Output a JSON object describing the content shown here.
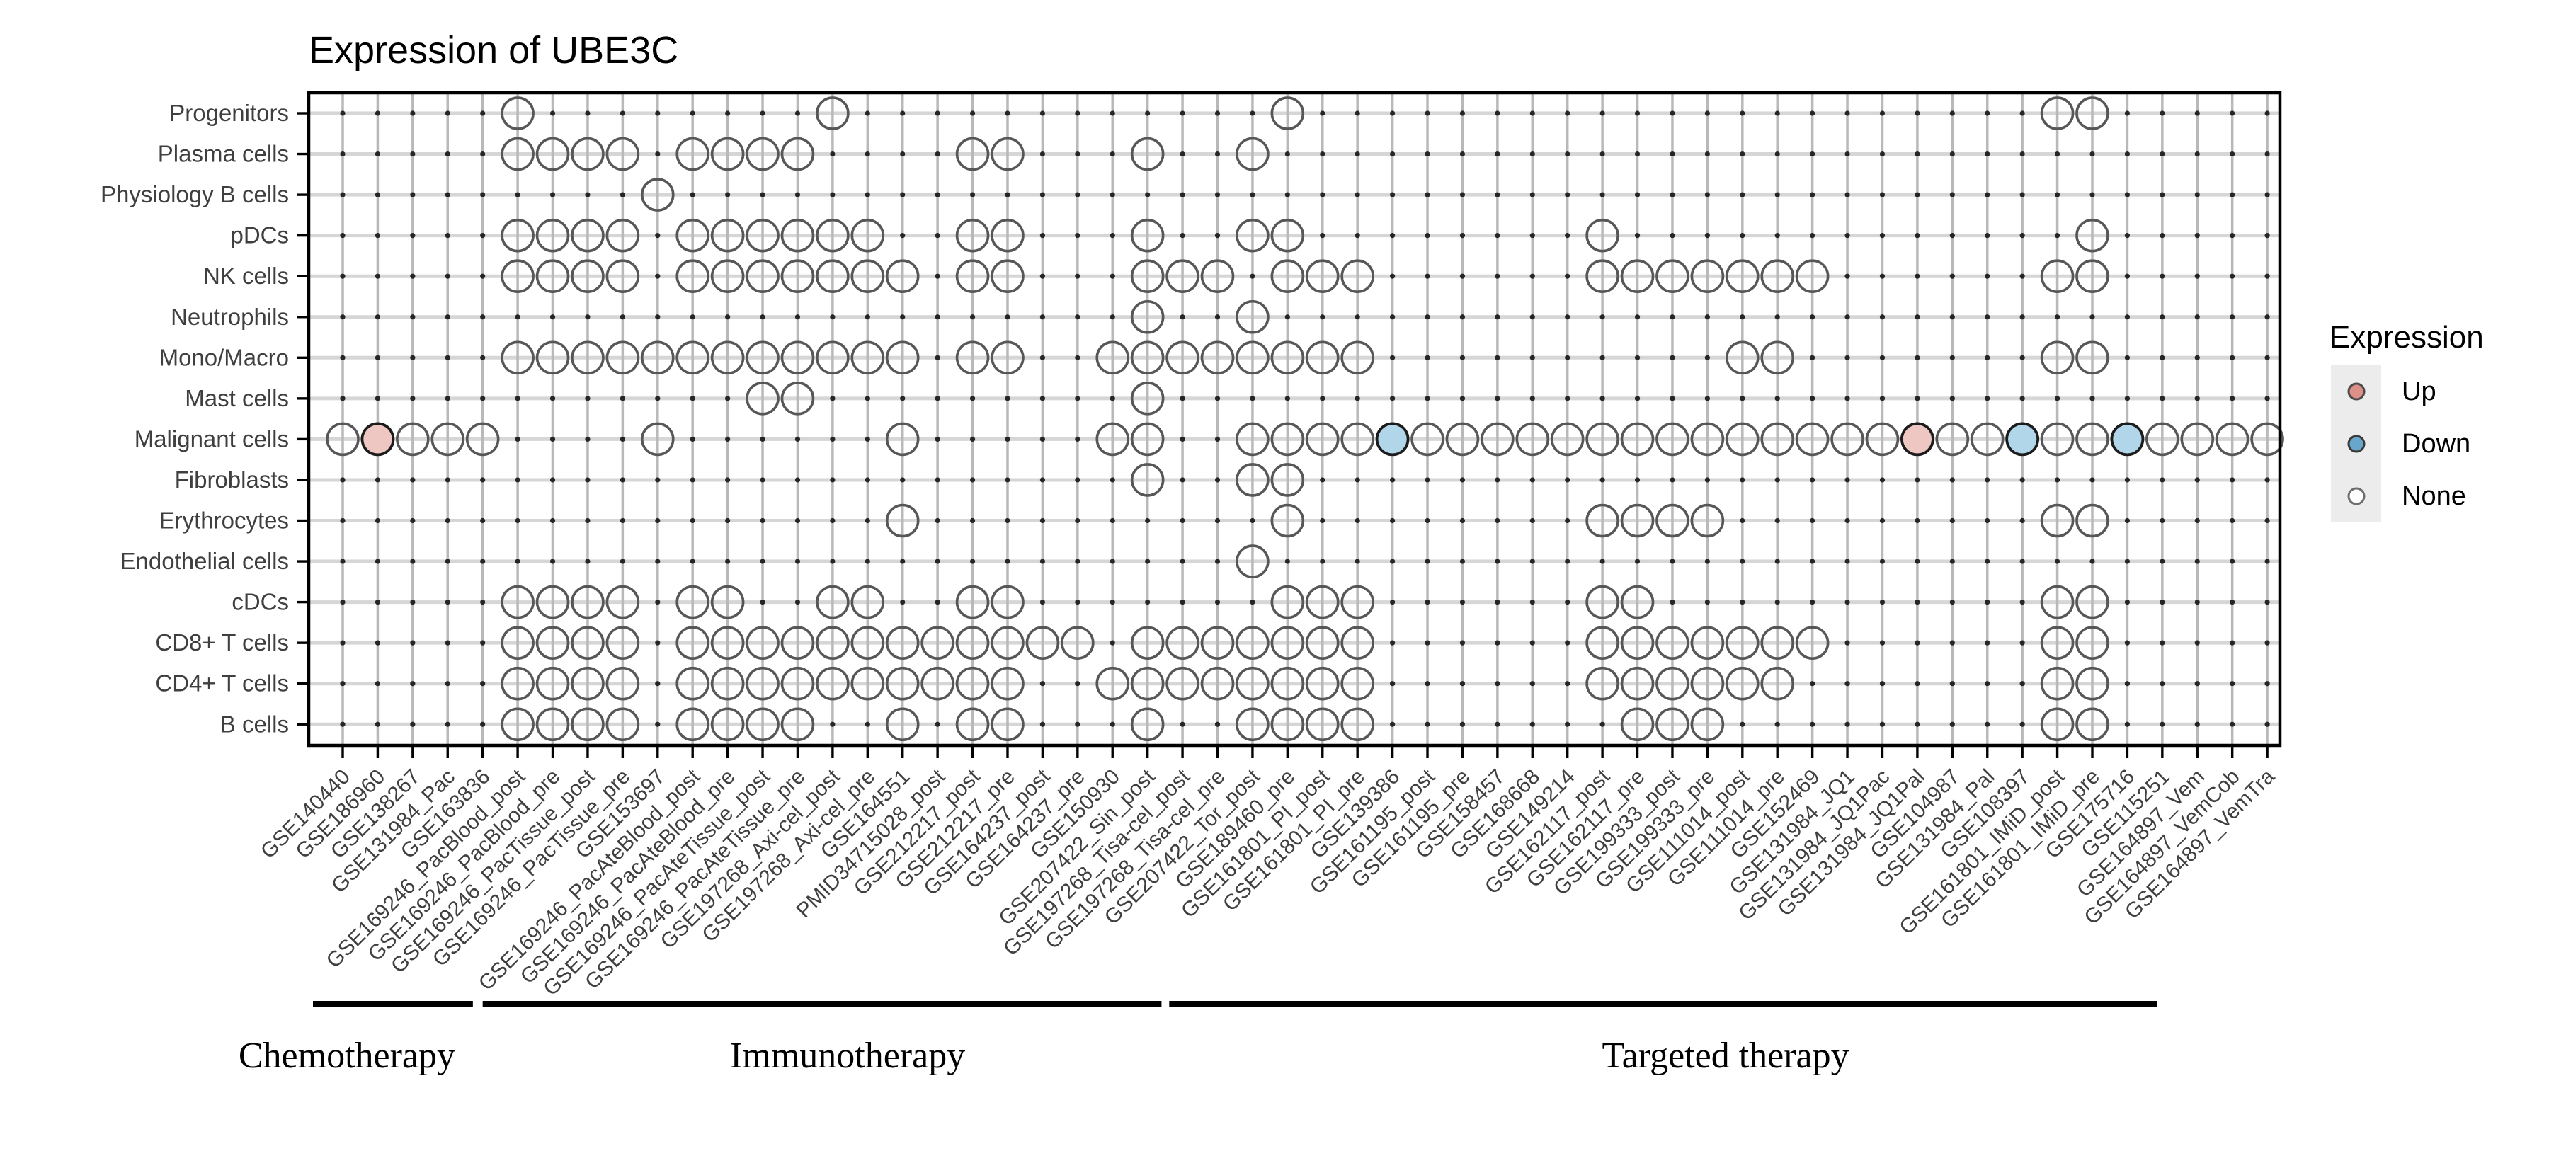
{
  "title": "Expression of UBE3C",
  "legend": {
    "title": "Expression",
    "items": [
      {
        "label": "Up",
        "color": "#dd9087",
        "stroke": "#4a4a4a"
      },
      {
        "label": "Down",
        "color": "#68a6cb",
        "stroke": "#3a3a3a"
      },
      {
        "label": "None",
        "color": "#ffffff",
        "stroke": "#6e6e6e"
      }
    ]
  },
  "colors": {
    "up_fill": "#eec7c3",
    "up_stroke": "#1c1c1c",
    "down_fill": "#b2d6e9",
    "down_stroke": "#1c1c1c",
    "none_stroke": "#575757",
    "grid_v": "#b9b9b9",
    "grid_h": "#d6d6d6",
    "point_dot": "#262626",
    "axis_text": "#3f3f3f",
    "bar": "#000000"
  },
  "groups": [
    {
      "label": "Chemotherapy",
      "cols_from": 1,
      "cols_to": 5,
      "bar_from_col": 0.15,
      "bar_to_col": 4.72,
      "label_at_col": 1.12
    },
    {
      "label": "Immunotherapy",
      "cols_from": 6,
      "cols_to": 24,
      "bar_from_col": 5.0,
      "bar_to_col": 24.4,
      "label_at_col": 15.43
    },
    {
      "label": "Targeted therapy",
      "cols_from": 25,
      "cols_to": 56,
      "bar_from_col": 24.62,
      "bar_to_col": 52.85,
      "label_at_col": 40.52
    }
  ],
  "chart_data": {
    "type": "heatmap",
    "subtype": "dot-matrix",
    "title": "Expression of UBE3C",
    "legend_title": "Expression",
    "legend_entries": [
      "Up",
      "Down",
      "None"
    ],
    "grid": true,
    "x_categories": [
      "GSE140440",
      "GSE186960",
      "GSE138267",
      "GSE131984_Pac",
      "GSE163836",
      "GSE169246_PacBlood_post",
      "GSE169246_PacBlood_pre",
      "GSE169246_PacTissue_post",
      "GSE169246_PacTissue_pre",
      "GSE153697",
      "GSE169246_PacAteBlood_post",
      "GSE169246_PacAteBlood_pre",
      "GSE169246_PacAteTissue_post",
      "GSE169246_PacAteTissue_pre",
      "GSE197268_Axi-cel_post",
      "GSE197268_Axi-cel_pre",
      "GSE164551",
      "PMID34715028_post",
      "GSE212217_post",
      "GSE212217_pre",
      "GSE164237_post",
      "GSE164237_pre",
      "GSE150930",
      "GSE207422_Sin_post",
      "GSE197268_Tisa-cel_post",
      "GSE197268_Tisa-cel_pre",
      "GSE207422_Tor_post",
      "GSE189460_pre",
      "GSE161801_PI_post",
      "GSE161801_PI_pre",
      "GSE139386",
      "GSE161195_post",
      "GSE161195_pre",
      "GSE158457",
      "GSE168668",
      "GSE149214",
      "GSE162117_post",
      "GSE162117_pre",
      "GSE199333_post",
      "GSE199333_pre",
      "GSE111014_post",
      "GSE111014_pre",
      "GSE152469",
      "GSE131984_JQ1",
      "GSE131984_JQ1Pac",
      "GSE131984_JQ1Pal",
      "GSE104987",
      "GSE131984_Pal",
      "GSE108397",
      "GSE161801_IMiD_post",
      "GSE161801_IMiD_pre",
      "GSE175716",
      "GSE115251",
      "GSE164897_Vem",
      "GSE164897_VemCob",
      "GSE164897_VemTra"
    ],
    "y_categories": [
      "Progenitors",
      "Plasma cells",
      "Physiology B cells",
      "pDCs",
      "NK cells",
      "Neutrophils",
      "Mono/Macro",
      "Mast cells",
      "Malignant cells",
      "Fibroblasts",
      "Erythrocytes",
      "Endothelial cells",
      "cDCs",
      "CD8+ T cells",
      "CD4+ T cells",
      "B cells"
    ],
    "rows": [
      {
        "row": "Progenitors",
        "cols": [
          6,
          15,
          28,
          50,
          51
        ],
        "status": {}
      },
      {
        "row": "Plasma cells",
        "cols": [
          6,
          7,
          8,
          9,
          11,
          12,
          13,
          14,
          19,
          20,
          24,
          27
        ],
        "status": {}
      },
      {
        "row": "Physiology B cells",
        "cols": [
          10
        ],
        "status": {}
      },
      {
        "row": "pDCs",
        "cols": [
          6,
          7,
          8,
          9,
          11,
          12,
          13,
          14,
          15,
          16,
          19,
          20,
          24,
          27,
          28,
          37,
          51
        ],
        "status": {}
      },
      {
        "row": "NK cells",
        "cols": [
          6,
          7,
          8,
          9,
          11,
          12,
          13,
          14,
          15,
          16,
          17,
          19,
          20,
          24,
          25,
          26,
          28,
          29,
          30,
          37,
          38,
          39,
          40,
          41,
          42,
          43,
          50,
          51
        ],
        "status": {}
      },
      {
        "row": "Neutrophils",
        "cols": [
          24,
          27
        ],
        "status": {}
      },
      {
        "row": "Mono/Macro",
        "cols": [
          6,
          7,
          8,
          9,
          10,
          11,
          12,
          13,
          14,
          15,
          16,
          17,
          19,
          20,
          23,
          24,
          25,
          26,
          27,
          28,
          29,
          30,
          41,
          42,
          50,
          51
        ],
        "status": {}
      },
      {
        "row": "Mast cells",
        "cols": [
          13,
          14,
          24
        ],
        "status": {}
      },
      {
        "row": "Malignant cells",
        "cols": [
          1,
          2,
          3,
          4,
          5,
          10,
          17,
          23,
          24,
          27,
          28,
          29,
          30,
          31,
          32,
          33,
          34,
          35,
          36,
          37,
          38,
          39,
          40,
          41,
          42,
          43,
          44,
          45,
          46,
          47,
          48,
          49,
          50,
          51,
          52,
          53,
          54,
          55,
          56
        ],
        "status": {
          "2": "Up",
          "31": "Down",
          "46": "Up",
          "49": "Down",
          "52": "Down"
        }
      },
      {
        "row": "Fibroblasts",
        "cols": [
          24,
          27,
          28
        ],
        "status": {}
      },
      {
        "row": "Erythrocytes",
        "cols": [
          17,
          28,
          37,
          38,
          39,
          40,
          50,
          51
        ],
        "status": {}
      },
      {
        "row": "Endothelial cells",
        "cols": [
          27
        ],
        "status": {}
      },
      {
        "row": "cDCs",
        "cols": [
          6,
          7,
          8,
          9,
          11,
          12,
          15,
          16,
          19,
          20,
          28,
          29,
          30,
          37,
          38,
          50,
          51
        ],
        "status": {}
      },
      {
        "row": "CD8+ T cells",
        "cols": [
          6,
          7,
          8,
          9,
          11,
          12,
          13,
          14,
          15,
          16,
          17,
          18,
          19,
          20,
          21,
          22,
          24,
          25,
          26,
          27,
          28,
          29,
          30,
          37,
          38,
          39,
          40,
          41,
          42,
          43,
          50,
          51
        ],
        "status": {}
      },
      {
        "row": "CD4+ T cells",
        "cols": [
          6,
          7,
          8,
          9,
          11,
          12,
          13,
          14,
          15,
          16,
          17,
          18,
          19,
          20,
          23,
          24,
          25,
          26,
          27,
          28,
          29,
          30,
          37,
          38,
          39,
          40,
          41,
          42,
          50,
          51
        ],
        "status": {}
      },
      {
        "row": "B cells",
        "cols": [
          6,
          7,
          8,
          9,
          11,
          12,
          13,
          14,
          17,
          19,
          20,
          24,
          27,
          28,
          29,
          30,
          38,
          39,
          40,
          50,
          51
        ],
        "status": {}
      }
    ],
    "x_groups": [
      "Chemotherapy",
      "Immunotherapy",
      "Targeted therapy"
    ],
    "legend_position": "right"
  }
}
